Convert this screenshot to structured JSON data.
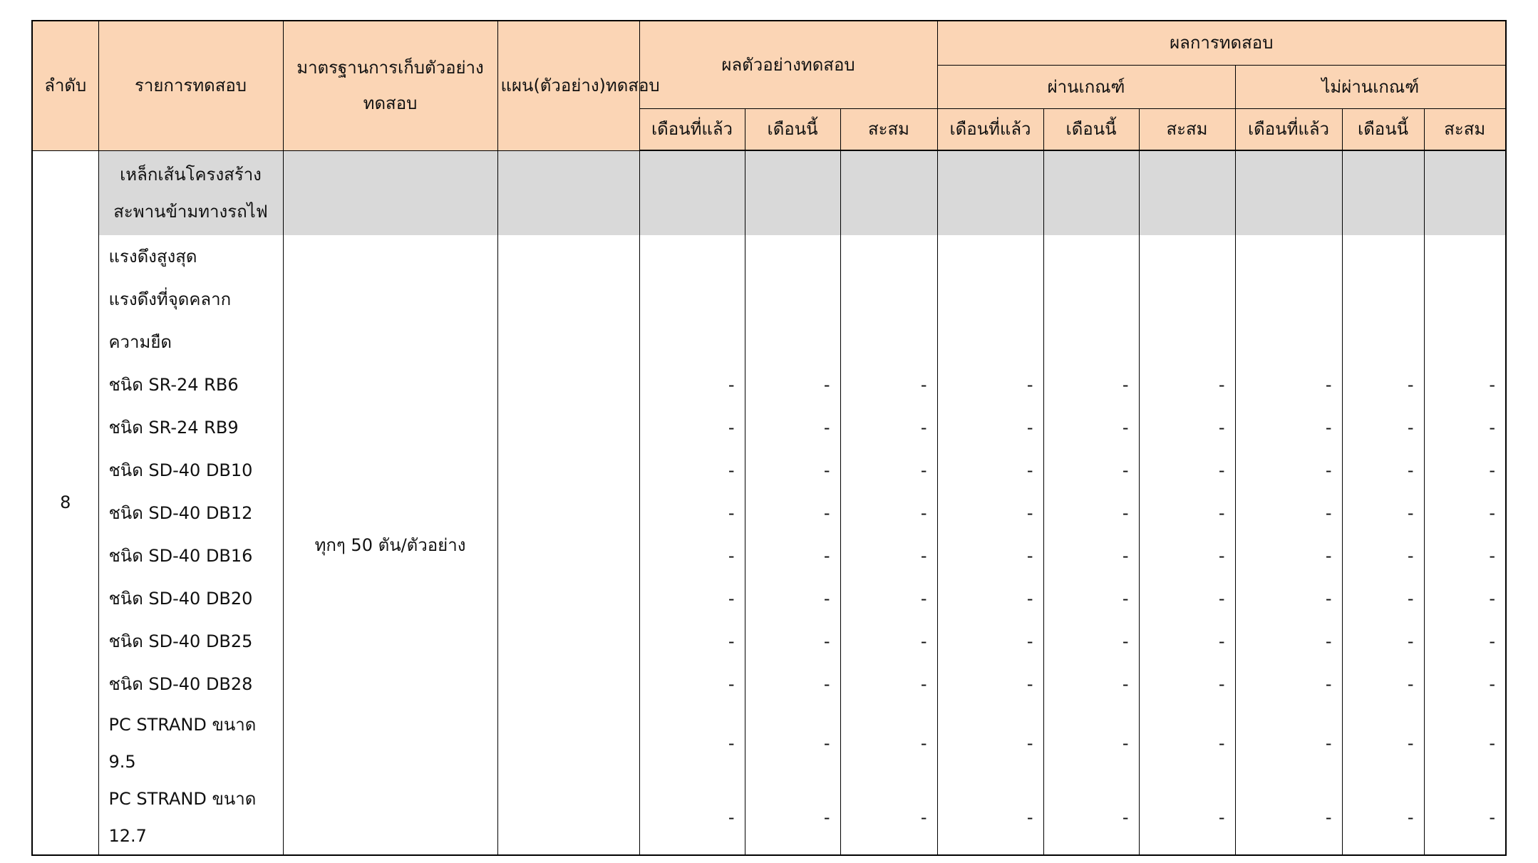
{
  "header": {
    "order": "ลำดับ",
    "test_item": "รายการทดสอบ",
    "sampling_standard": "มาตรฐานการเก็บตัวอย่างทดสอบ",
    "plan": "แผน(ตัวอย่าง)ทดสอบ",
    "sample_results": "ผลตัวอย่างทดสอบ",
    "test_results": "ผลการทดสอบ",
    "pass": "ผ่านเกณฑ์",
    "fail": "ไม่ผ่านเกณฑ์",
    "sub": [
      "เดือนที่แล้ว",
      "เดือนนี้",
      "สะสม",
      "เดือนที่แล้ว",
      "เดือนนี้",
      "สะสม",
      "เดือนที่แล้ว",
      "เดือนนี้",
      "สะสม"
    ]
  },
  "colors": {
    "header_bg": "#fbd5b5",
    "group_row_bg": "#d9d9d9"
  },
  "group": {
    "order": "8",
    "title": "เหล็กเส้นโครงสร้างสะพานข้ามทางรถไฟ",
    "sampling_standard": "ทุกๆ 50 ตัน/ตัวอย่าง",
    "plan": ""
  },
  "rows": [
    {
      "label": "แรงดึงสูงสุด",
      "values": [
        "",
        "",
        "",
        "",
        "",
        "",
        "",
        "",
        ""
      ]
    },
    {
      "label": "แรงดึงที่จุดคลาก",
      "values": [
        "",
        "",
        "",
        "",
        "",
        "",
        "",
        "",
        ""
      ]
    },
    {
      "label": "ความยืด",
      "values": [
        "",
        "",
        "",
        "",
        "",
        "",
        "",
        "",
        ""
      ]
    },
    {
      "label": "ชนิด SR-24 RB6",
      "values": [
        "-",
        "-",
        "-",
        "-",
        "-",
        "-",
        "-",
        "-",
        "-"
      ]
    },
    {
      "label": "ชนิด SR-24 RB9",
      "values": [
        "-",
        "-",
        "-",
        "-",
        "-",
        "-",
        "-",
        "-",
        "-"
      ]
    },
    {
      "label": "ชนิด SD-40 DB10",
      "values": [
        "-",
        "-",
        "-",
        "-",
        "-",
        "-",
        "-",
        "-",
        "-"
      ]
    },
    {
      "label": "ชนิด SD-40 DB12",
      "values": [
        "-",
        "-",
        "-",
        "-",
        "-",
        "-",
        "-",
        "-",
        "-"
      ]
    },
    {
      "label": "ชนิด SD-40 DB16",
      "values": [
        "-",
        "-",
        "-",
        "-",
        "-",
        "-",
        "-",
        "-",
        "-"
      ]
    },
    {
      "label": "ชนิด SD-40 DB20",
      "values": [
        "-",
        "-",
        "-",
        "-",
        "-",
        "-",
        "-",
        "-",
        "-"
      ]
    },
    {
      "label": "ชนิด SD-40 DB25",
      "values": [
        "-",
        "-",
        "-",
        "-",
        "-",
        "-",
        "-",
        "-",
        "-"
      ]
    },
    {
      "label": "ชนิด SD-40 DB28",
      "values": [
        "-",
        "-",
        "-",
        "-",
        "-",
        "-",
        "-",
        "-",
        "-"
      ]
    },
    {
      "label": "PC STRAND ขนาด 9.5",
      "values": [
        "-",
        "-",
        "-",
        "-",
        "-",
        "-",
        "-",
        "-",
        "-"
      ]
    },
    {
      "label": "PC STRAND ขนาด 12.7",
      "values": [
        "-",
        "-",
        "-",
        "-",
        "-",
        "-",
        "-",
        "-",
        "-"
      ]
    }
  ]
}
